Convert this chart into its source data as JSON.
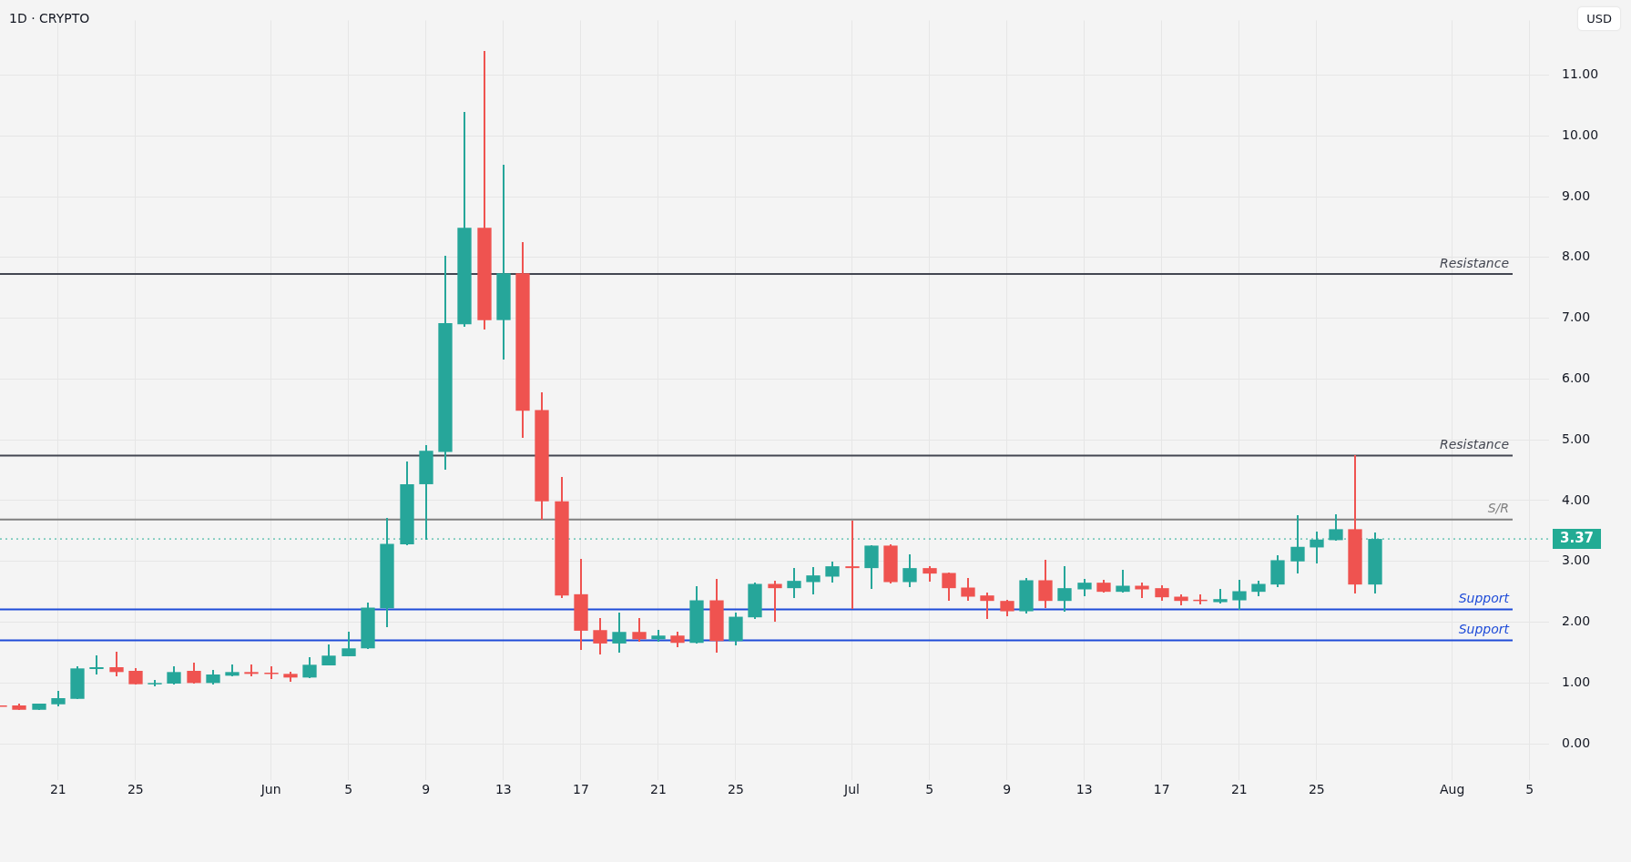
{
  "chart_data": {
    "type": "candlestick",
    "title": "1D · CRYPTO",
    "ylabel": "USD",
    "x": [
      "--05-18",
      "--05-19",
      "--05-20",
      "--05-21",
      "--05-22",
      "--05-23",
      "--05-24",
      "--05-25",
      "--05-26",
      "--05-27",
      "--05-28",
      "--05-29",
      "--05-30",
      "--05-31",
      "--06-01",
      "--06-02",
      "--06-03",
      "--06-04",
      "--06-05",
      "--06-06",
      "--06-07",
      "--06-08",
      "--06-09",
      "--06-10",
      "--06-11",
      "--06-12",
      "--06-13",
      "--06-14",
      "--06-15",
      "--06-16",
      "--06-17",
      "--06-18",
      "--06-19",
      "--06-20",
      "--06-21",
      "--06-22",
      "--06-23",
      "--06-24",
      "--06-25",
      "--06-26",
      "--06-27",
      "--06-28",
      "--06-29",
      "--06-30",
      "--07-01",
      "--07-02",
      "--07-03",
      "--07-04",
      "--07-05",
      "--07-06",
      "--07-07",
      "--07-08",
      "--07-09",
      "--07-10",
      "--07-11",
      "--07-12",
      "--07-13",
      "--07-14",
      "--07-15",
      "--07-16",
      "--07-17",
      "--07-18",
      "--07-19",
      "--07-20",
      "--07-21",
      "--07-22",
      "--07-23",
      "--07-24",
      "--07-25",
      "--07-26",
      "--07-27",
      "--07-28"
    ],
    "ohlc": [
      [
        0.63,
        0.63,
        0.62,
        0.62
      ],
      [
        0.63,
        0.66,
        0.56,
        0.56
      ],
      [
        0.56,
        0.66,
        0.56,
        0.66
      ],
      [
        0.65,
        0.86,
        0.62,
        0.75
      ],
      [
        0.74,
        1.26,
        0.74,
        1.24
      ],
      [
        1.23,
        1.45,
        1.14,
        1.26
      ],
      [
        1.26,
        1.51,
        1.11,
        1.18
      ],
      [
        1.2,
        1.24,
        0.98,
        0.98
      ],
      [
        0.98,
        1.05,
        0.95,
        1.0
      ],
      [
        0.99,
        1.27,
        0.99,
        1.18
      ],
      [
        1.2,
        1.32,
        1.0,
        1.0
      ],
      [
        1.0,
        1.2,
        0.98,
        1.14
      ],
      [
        1.12,
        1.3,
        1.11,
        1.18
      ],
      [
        1.18,
        1.3,
        1.11,
        1.15
      ],
      [
        1.17,
        1.26,
        1.08,
        1.16
      ],
      [
        1.15,
        1.18,
        1.03,
        1.09
      ],
      [
        1.09,
        1.42,
        1.09,
        1.3
      ],
      [
        1.29,
        1.63,
        1.29,
        1.45
      ],
      [
        1.44,
        1.84,
        1.44,
        1.57
      ],
      [
        1.57,
        2.32,
        1.57,
        2.24
      ],
      [
        2.23,
        3.71,
        1.92,
        3.29
      ],
      [
        3.28,
        4.63,
        3.27,
        4.27
      ],
      [
        4.27,
        4.91,
        3.36,
        4.82
      ],
      [
        4.8,
        8.02,
        4.52,
        6.92
      ],
      [
        6.9,
        10.39,
        6.86,
        8.49
      ],
      [
        8.49,
        11.39,
        6.82,
        6.97
      ],
      [
        6.97,
        9.52,
        6.33,
        7.74
      ],
      [
        7.74,
        8.25,
        5.04,
        5.48
      ],
      [
        5.49,
        5.77,
        3.7,
        3.99
      ],
      [
        3.99,
        4.38,
        2.41,
        2.44
      ],
      [
        2.46,
        3.03,
        1.55,
        1.86
      ],
      [
        1.87,
        2.06,
        1.48,
        1.65
      ],
      [
        1.65,
        2.15,
        1.51,
        1.84
      ],
      [
        1.84,
        2.06,
        1.69,
        1.72
      ],
      [
        1.72,
        1.86,
        1.68,
        1.78
      ],
      [
        1.78,
        1.84,
        1.59,
        1.66
      ],
      [
        1.66,
        2.59,
        1.66,
        2.36
      ],
      [
        2.36,
        2.71,
        1.51,
        1.69
      ],
      [
        1.69,
        2.15,
        1.62,
        2.09
      ],
      [
        2.08,
        2.65,
        2.06,
        2.63
      ],
      [
        2.63,
        2.68,
        2.02,
        2.56
      ],
      [
        2.56,
        2.89,
        2.41,
        2.68
      ],
      [
        2.66,
        2.9,
        2.47,
        2.77
      ],
      [
        2.75,
        2.99,
        2.66,
        2.92
      ],
      [
        2.92,
        3.67,
        2.23,
        2.89
      ],
      [
        2.89,
        3.26,
        2.56,
        3.26
      ],
      [
        3.26,
        3.28,
        2.65,
        2.66
      ],
      [
        2.66,
        3.11,
        2.59,
        2.89
      ],
      [
        2.89,
        2.92,
        2.68,
        2.8
      ],
      [
        2.81,
        2.81,
        2.36,
        2.56
      ],
      [
        2.57,
        2.72,
        2.36,
        2.42
      ],
      [
        2.44,
        2.48,
        2.06,
        2.35
      ],
      [
        2.35,
        2.36,
        2.11,
        2.18
      ],
      [
        2.18,
        2.72,
        2.15,
        2.69
      ],
      [
        2.69,
        3.02,
        2.24,
        2.35
      ],
      [
        2.35,
        2.92,
        2.18,
        2.56
      ],
      [
        2.54,
        2.71,
        2.44,
        2.65
      ],
      [
        2.65,
        2.69,
        2.5,
        2.5
      ],
      [
        2.5,
        2.86,
        2.5,
        2.6
      ],
      [
        2.6,
        2.65,
        2.41,
        2.54
      ],
      [
        2.56,
        2.6,
        2.36,
        2.41
      ],
      [
        2.42,
        2.45,
        2.29,
        2.35
      ],
      [
        2.37,
        2.45,
        2.3,
        2.35
      ],
      [
        2.33,
        2.54,
        2.32,
        2.38
      ],
      [
        2.36,
        2.69,
        2.21,
        2.51
      ],
      [
        2.5,
        2.68,
        2.44,
        2.63
      ],
      [
        2.62,
        3.09,
        2.59,
        3.02
      ],
      [
        3.0,
        3.75,
        2.81,
        3.24
      ],
      [
        3.23,
        3.48,
        2.98,
        3.36
      ],
      [
        3.35,
        3.77,
        3.35,
        3.53
      ],
      [
        3.53,
        4.74,
        2.48,
        2.62
      ],
      [
        2.62,
        3.47,
        2.48,
        3.37
      ]
    ],
    "colors": [
      "#ef5350",
      "#ef5350",
      "#26a69a",
      "#26a69a",
      "#26a69a",
      "#26a69a",
      "#ef5350",
      "#ef5350",
      "#26a69a",
      "#26a69a",
      "#ef5350",
      "#26a69a",
      "#26a69a",
      "#ef5350",
      "#ef5350",
      "#ef5350",
      "#26a69a",
      "#26a69a",
      "#26a69a",
      "#26a69a",
      "#26a69a",
      "#26a69a",
      "#26a69a",
      "#26a69a",
      "#26a69a",
      "#ef5350",
      "#26a69a",
      "#ef5350",
      "#ef5350",
      "#ef5350",
      "#ef5350",
      "#ef5350",
      "#26a69a",
      "#ef5350",
      "#26a69a",
      "#ef5350",
      "#26a69a",
      "#ef5350",
      "#26a69a",
      "#26a69a",
      "#ef5350",
      "#26a69a",
      "#26a69a",
      "#26a69a",
      "#ef5350",
      "#26a69a",
      "#ef5350",
      "#26a69a",
      "#ef5350",
      "#ef5350",
      "#ef5350",
      "#ef5350",
      "#ef5350",
      "#26a69a",
      "#ef5350",
      "#26a69a",
      "#26a69a",
      "#ef5350",
      "#26a69a",
      "#ef5350",
      "#ef5350",
      "#ef5350",
      "#ef5350",
      "#26a69a",
      "#26a69a",
      "#26a69a",
      "#26a69a",
      "#26a69a",
      "#26a69a",
      "#26a69a",
      "#ef5350",
      "#26a69a"
    ],
    "xlim": [
      "--05-18",
      "--08-06"
    ],
    "xticks": [
      {
        "value": "--05-21",
        "label": "21"
      },
      {
        "value": "--05-25",
        "label": "25"
      },
      {
        "value": "--06-01",
        "label": "Jun"
      },
      {
        "value": "--06-05",
        "label": "5"
      },
      {
        "value": "--06-09",
        "label": "9"
      },
      {
        "value": "--06-13",
        "label": "13"
      },
      {
        "value": "--06-17",
        "label": "17"
      },
      {
        "value": "--06-21",
        "label": "21"
      },
      {
        "value": "--06-25",
        "label": "25"
      },
      {
        "value": "--07-01",
        "label": "Jul"
      },
      {
        "value": "--07-05",
        "label": "5"
      },
      {
        "value": "--07-09",
        "label": "9"
      },
      {
        "value": "--07-13",
        "label": "13"
      },
      {
        "value": "--07-17",
        "label": "17"
      },
      {
        "value": "--07-21",
        "label": "21"
      },
      {
        "value": "--07-25",
        "label": "25"
      },
      {
        "value": "--08-01",
        "label": "Aug"
      },
      {
        "value": "--08-05",
        "label": "5"
      }
    ],
    "ylim": [
      -0.6,
      11.9
    ],
    "yticks": [
      {
        "value": 0,
        "label": "0.00"
      },
      {
        "value": 1,
        "label": "1.00"
      },
      {
        "value": 2,
        "label": "2.00"
      },
      {
        "value": 3,
        "label": "3.00"
      },
      {
        "value": 4,
        "label": "4.00"
      },
      {
        "value": 5,
        "label": "5.00"
      },
      {
        "value": 6,
        "label": "6.00"
      },
      {
        "value": 7,
        "label": "7.00"
      },
      {
        "value": 8,
        "label": "8.00"
      },
      {
        "value": 9,
        "label": "9.00"
      },
      {
        "value": 10,
        "label": "10.00"
      },
      {
        "value": 11,
        "label": "11.00"
      }
    ],
    "ref_lines": [
      {
        "axis": "y",
        "value": 7.73,
        "label": "Resistance",
        "color": "#434651"
      },
      {
        "axis": "y",
        "value": 4.74,
        "label": "Resistance",
        "color": "#434651"
      },
      {
        "axis": "y",
        "value": 3.69,
        "label": "S/R",
        "color": "#808080"
      },
      {
        "axis": "y",
        "value": 2.21,
        "label": "Support",
        "color": "#1e4bd8"
      },
      {
        "axis": "y",
        "value": 1.7,
        "label": "Support",
        "color": "#1e4bd8"
      },
      {
        "axis": "y",
        "value": 3.37,
        "label": "3.37",
        "color": "#22ab94",
        "line_style": "dotted"
      }
    ],
    "grid": true,
    "legend": false
  }
}
